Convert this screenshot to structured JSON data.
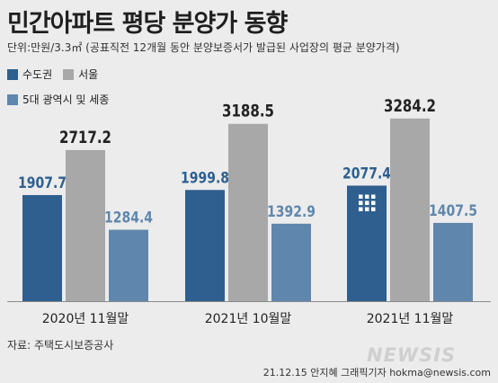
{
  "header": {
    "title": "민간아파트 평당 분양가 동향",
    "unit_note": "단위:만원/3.3㎡ (공표직전 12개월 동안 분양보증서가 발급된 사업장의 평균 분양가격)"
  },
  "chart_data": {
    "type": "bar",
    "categories": [
      "2020년 11월말",
      "2021년 10월말",
      "2021년 11월말"
    ],
    "series": [
      {
        "name": "수도권",
        "values": [
          1907.7,
          1999.8,
          2077.4
        ],
        "color": "#2e5f8f"
      },
      {
        "name": "서울",
        "values": [
          2717.2,
          3188.5,
          3284.2
        ],
        "color": "#a8a8a8"
      },
      {
        "name": "5대 광역시 및 세종",
        "values": [
          1284.4,
          1392.9,
          1407.5
        ],
        "color": "#5f87ad"
      }
    ],
    "ylim": [
      0,
      3750
    ],
    "grid": false,
    "legend_position": "top-left",
    "value_label_colors": [
      "#2e5f8f",
      "#222222",
      "#5f87ad"
    ]
  },
  "footer": {
    "source": "자료: 주택도시보증공사",
    "watermark": "NEWSIS",
    "credit": "21.12.15 안지혜 그래픽기자 hokma@newsis.com"
  }
}
